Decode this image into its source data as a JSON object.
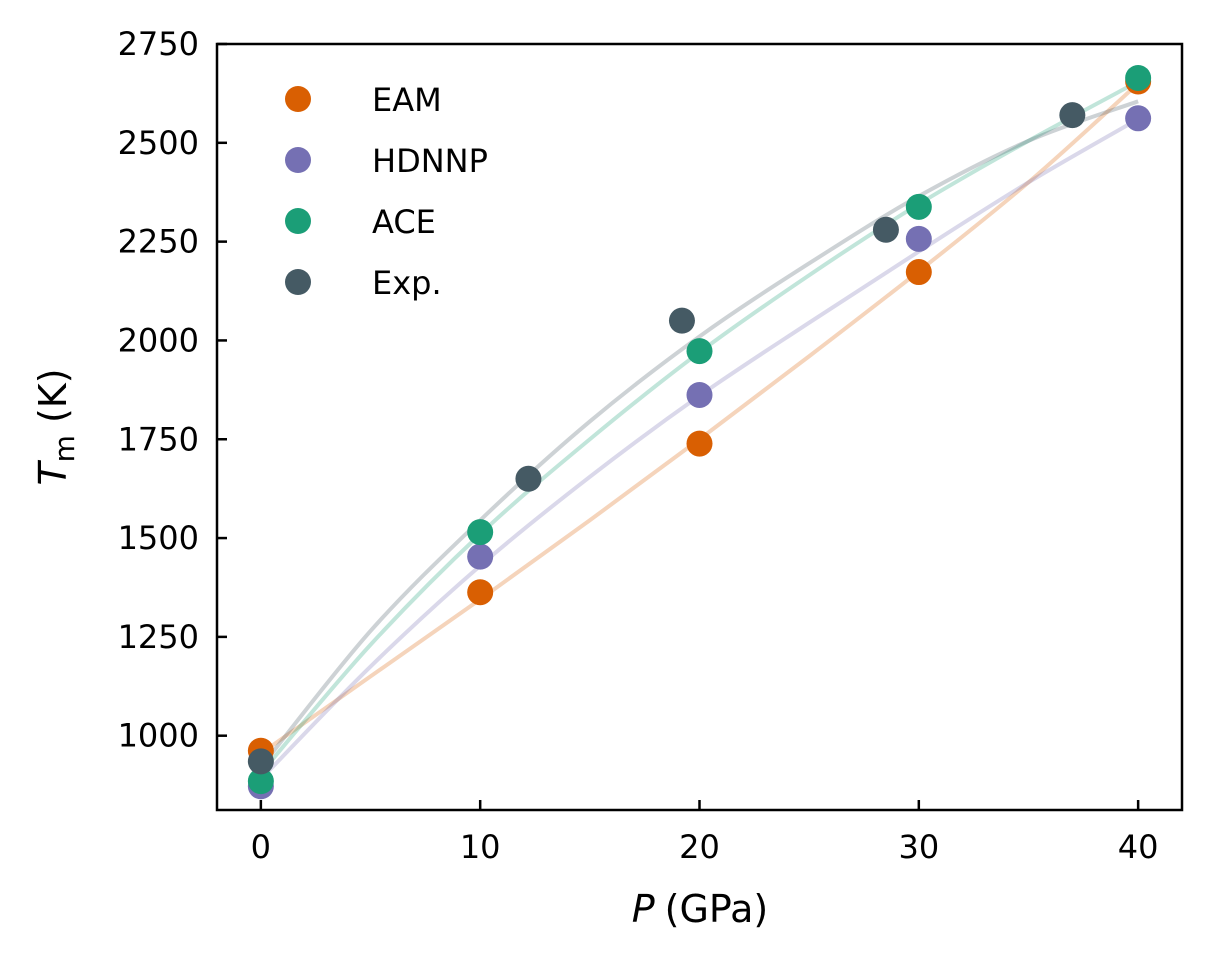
{
  "chart_data": {
    "type": "scatter",
    "title": "",
    "xlabel": {
      "symbol": "P",
      "unit": "(GPa)"
    },
    "ylabel": {
      "symbol": "T",
      "subscript": "m",
      "unit": "(K)"
    },
    "xlim": [
      -2,
      42
    ],
    "ylim": [
      812,
      2750
    ],
    "xticks": [
      0,
      10,
      20,
      30,
      40
    ],
    "yticks": [
      1000,
      1250,
      1500,
      1750,
      2000,
      2250,
      2500,
      2750
    ],
    "grid": false,
    "legend_position": "top-left",
    "series": [
      {
        "name": "EAM",
        "color": "#d95f02",
        "x": [
          0,
          10,
          20,
          30,
          40
        ],
        "y": [
          962,
          1363,
          1739,
          2173,
          2655
        ],
        "fit_x": [
          0,
          5,
          10,
          15,
          20,
          25,
          30,
          35,
          40
        ],
        "fit_y": [
          955,
          1150,
          1345,
          1545,
          1750,
          1960,
          2175,
          2400,
          2650
        ]
      },
      {
        "name": "HDNNP",
        "color": "#7570b3",
        "x": [
          0,
          10,
          20,
          30,
          40
        ],
        "y": [
          872,
          1453,
          1862,
          2257,
          2562
        ],
        "fit_x": [
          0,
          5,
          10,
          15,
          20,
          25,
          30,
          35,
          40
        ],
        "fit_y": [
          890,
          1175,
          1430,
          1655,
          1860,
          2045,
          2225,
          2400,
          2560
        ]
      },
      {
        "name": "ACE",
        "color": "#1b9e77",
        "x": [
          0,
          10,
          20,
          30,
          40
        ],
        "y": [
          885,
          1515,
          1973,
          2338,
          2664
        ],
        "fit_x": [
          0,
          5,
          10,
          15,
          20,
          25,
          30,
          35,
          40
        ],
        "fit_y": [
          905,
          1230,
          1510,
          1750,
          1970,
          2165,
          2345,
          2505,
          2655
        ]
      },
      {
        "name": "Exp.",
        "color": "#455a64",
        "x": [
          0,
          12.2,
          19.2,
          28.5,
          37
        ],
        "y": [
          935,
          1650,
          2050,
          2280,
          2570
        ],
        "fit_x": [
          0,
          5,
          10,
          15,
          20,
          25,
          30,
          35,
          40
        ],
        "fit_y": [
          920,
          1265,
          1545,
          1795,
          2010,
          2195,
          2365,
          2505,
          2605
        ]
      }
    ]
  }
}
